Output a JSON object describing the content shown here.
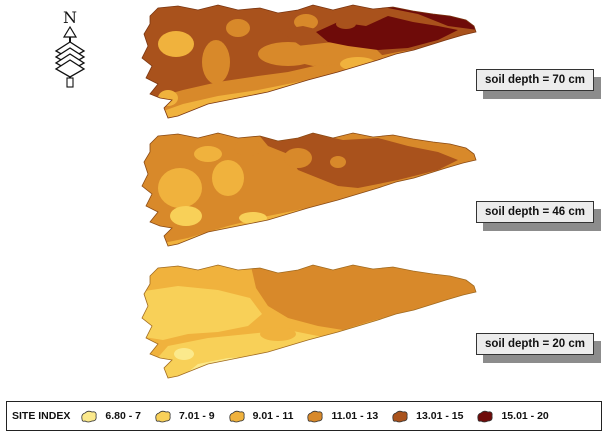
{
  "compass": {
    "north_letter": "N"
  },
  "panels": [
    {
      "label": "soil depth = 70 cm"
    },
    {
      "label": "soil depth = 46 cm"
    },
    {
      "label": "soil depth = 20 cm"
    }
  ],
  "legend": {
    "title": "SITE INDEX",
    "classes": [
      {
        "range": "6.80 - 7",
        "color": "#fbe98c"
      },
      {
        "range": "7.01 - 9",
        "color": "#f8d058"
      },
      {
        "range": "9.01 - 11",
        "color": "#f0b23d"
      },
      {
        "range": "11.01 - 13",
        "color": "#d8892a"
      },
      {
        "range": "13.01 - 15",
        "color": "#a9521c"
      },
      {
        "range": "15.01 - 20",
        "color": "#6e0b09"
      }
    ]
  }
}
